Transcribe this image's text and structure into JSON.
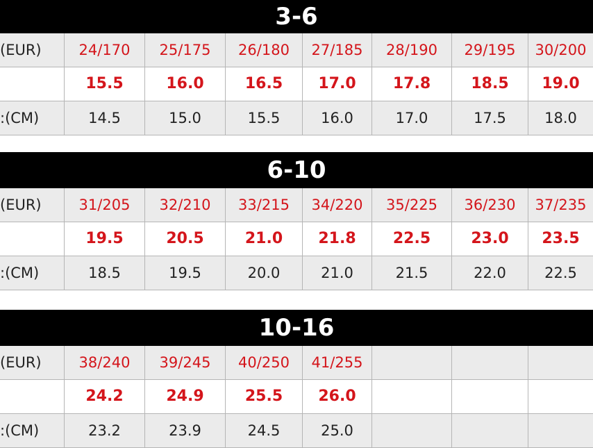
{
  "row_labels": {
    "eur": "(EUR)",
    "us": "",
    "cm": ":(CM)"
  },
  "colors": {
    "header_bg": "#000000",
    "accent_red": "#d4151b",
    "row_grey": "#ebebeb"
  },
  "sections": [
    {
      "title": "3-6",
      "eur": [
        "24/170",
        "25/175",
        "26/180",
        "27/185",
        "28/190",
        "29/195",
        "30/200"
      ],
      "us": [
        "15.5",
        "16.0",
        "16.5",
        "17.0",
        "17.8",
        "18.5",
        "19.0"
      ],
      "cm": [
        "14.5",
        "15.0",
        "15.5",
        "16.0",
        "17.0",
        "17.5",
        "18.0"
      ]
    },
    {
      "title": "6-10",
      "eur": [
        "31/205",
        "32/210",
        "33/215",
        "34/220",
        "35/225",
        "36/230",
        "37/235"
      ],
      "us": [
        "19.5",
        "20.5",
        "21.0",
        "21.8",
        "22.5",
        "23.0",
        "23.5"
      ],
      "cm": [
        "18.5",
        "19.5",
        "20.0",
        "21.0",
        "21.5",
        "22.0",
        "22.5"
      ]
    },
    {
      "title": "10-16",
      "eur": [
        "38/240",
        "39/245",
        "40/250",
        "41/255",
        "",
        "",
        ""
      ],
      "us": [
        "24.2",
        "24.9",
        "25.5",
        "26.0",
        "",
        "",
        ""
      ],
      "cm": [
        "23.2",
        "23.9",
        "24.5",
        "25.0",
        "",
        "",
        ""
      ]
    }
  ]
}
